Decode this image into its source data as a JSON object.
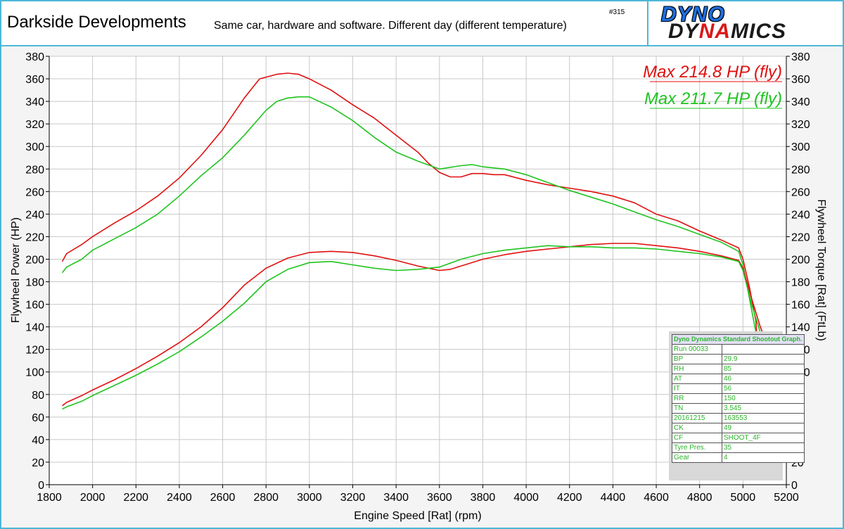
{
  "header": {
    "title": "Darkside Developments",
    "subtitle": "Same car, hardware and software. Different day (different temperature)",
    "run_number": "#315"
  },
  "logo": {
    "line1": "DYNO",
    "line2_a": "DY",
    "line2_b": "NA",
    "line2_c": "MICS"
  },
  "colors": {
    "run1": "#e01010",
    "run2": "#1fc41f",
    "grid": "#c8c8c8",
    "border": "#4db8d8"
  },
  "info_table": {
    "caption": "Dyno Dynamics Standard Shootout Graph.",
    "rows": [
      [
        "Run 00033",
        ""
      ],
      [
        "BP",
        "29.9"
      ],
      [
        "RH",
        "85"
      ],
      [
        "AT",
        "46"
      ],
      [
        "IT",
        "56"
      ],
      [
        "RR",
        "150"
      ],
      [
        "TN",
        "3.545"
      ],
      [
        "20161215",
        "163553"
      ],
      [
        "CK",
        "49"
      ],
      [
        "CF",
        "SHOOT_4F"
      ],
      [
        "Tyre Pres.",
        "35"
      ],
      [
        "Gear",
        "4"
      ]
    ]
  },
  "chart_data": {
    "type": "line",
    "xlabel": "Engine Speed [Rat] (rpm)",
    "ylabel_left": "Flywheel Power (HP)",
    "ylabel_right": "Flywheel Torque [Rat] (FtLb)",
    "xlim": [
      1800,
      5200
    ],
    "ylim": [
      0,
      380
    ],
    "x_ticks": [
      1800,
      2000,
      2200,
      2400,
      2600,
      2800,
      3000,
      3200,
      3400,
      3600,
      3800,
      4000,
      4200,
      4400,
      4600,
      4800,
      5000,
      5200
    ],
    "y_ticks": [
      0,
      20,
      40,
      60,
      80,
      100,
      120,
      140,
      160,
      180,
      200,
      220,
      240,
      260,
      280,
      300,
      320,
      340,
      360,
      380
    ],
    "grid": true,
    "annotations": [
      {
        "text": "Max 214.8 HP (fly)",
        "color": "#e01010"
      },
      {
        "text": "Max 211.7 HP (fly)",
        "color": "#1fc41f"
      }
    ],
    "series": [
      {
        "run": 1,
        "kind": "torque",
        "color": "#e01010",
        "points": [
          [
            1860,
            198
          ],
          [
            1880,
            205
          ],
          [
            1950,
            213
          ],
          [
            2000,
            220
          ],
          [
            2100,
            232
          ],
          [
            2200,
            243
          ],
          [
            2300,
            256
          ],
          [
            2400,
            272
          ],
          [
            2500,
            292
          ],
          [
            2600,
            315
          ],
          [
            2700,
            343
          ],
          [
            2770,
            360
          ],
          [
            2850,
            364
          ],
          [
            2900,
            365
          ],
          [
            2950,
            364
          ],
          [
            3000,
            360
          ],
          [
            3100,
            350
          ],
          [
            3200,
            337
          ],
          [
            3300,
            325
          ],
          [
            3400,
            310
          ],
          [
            3500,
            295
          ],
          [
            3550,
            285
          ],
          [
            3600,
            277
          ],
          [
            3650,
            273
          ],
          [
            3700,
            273
          ],
          [
            3750,
            276
          ],
          [
            3800,
            276
          ],
          [
            3850,
            275
          ],
          [
            3900,
            275
          ],
          [
            4000,
            270
          ],
          [
            4100,
            266
          ],
          [
            4200,
            263
          ],
          [
            4300,
            260
          ],
          [
            4400,
            256
          ],
          [
            4500,
            250
          ],
          [
            4600,
            240
          ],
          [
            4700,
            234
          ],
          [
            4800,
            225
          ],
          [
            4900,
            217
          ],
          [
            4980,
            210
          ],
          [
            5000,
            200
          ],
          [
            5030,
            175
          ],
          [
            5060,
            145
          ],
          [
            5070,
            110
          ]
        ]
      },
      {
        "run": 2,
        "kind": "torque",
        "color": "#1fc41f",
        "points": [
          [
            1860,
            188
          ],
          [
            1880,
            193
          ],
          [
            1950,
            200
          ],
          [
            2000,
            208
          ],
          [
            2100,
            218
          ],
          [
            2200,
            228
          ],
          [
            2300,
            240
          ],
          [
            2400,
            256
          ],
          [
            2500,
            274
          ],
          [
            2600,
            290
          ],
          [
            2700,
            310
          ],
          [
            2800,
            332
          ],
          [
            2850,
            340
          ],
          [
            2900,
            343
          ],
          [
            2950,
            344
          ],
          [
            3000,
            344
          ],
          [
            3100,
            335
          ],
          [
            3200,
            323
          ],
          [
            3300,
            308
          ],
          [
            3400,
            295
          ],
          [
            3500,
            287
          ],
          [
            3600,
            280
          ],
          [
            3700,
            283
          ],
          [
            3750,
            284
          ],
          [
            3800,
            282
          ],
          [
            3900,
            280
          ],
          [
            4000,
            275
          ],
          [
            4100,
            268
          ],
          [
            4200,
            261
          ],
          [
            4300,
            255
          ],
          [
            4400,
            249
          ],
          [
            4500,
            242
          ],
          [
            4600,
            235
          ],
          [
            4700,
            229
          ],
          [
            4800,
            222
          ],
          [
            4900,
            215
          ],
          [
            4980,
            207
          ],
          [
            5000,
            195
          ],
          [
            5030,
            165
          ],
          [
            5060,
            135
          ],
          [
            5080,
            100
          ]
        ]
      },
      {
        "run": 1,
        "kind": "power",
        "color": "#e01010",
        "points": [
          [
            1860,
            70
          ],
          [
            1880,
            73
          ],
          [
            1950,
            79
          ],
          [
            2000,
            84
          ],
          [
            2100,
            93
          ],
          [
            2200,
            103
          ],
          [
            2300,
            114
          ],
          [
            2400,
            126
          ],
          [
            2500,
            140
          ],
          [
            2600,
            157
          ],
          [
            2700,
            177
          ],
          [
            2800,
            192
          ],
          [
            2900,
            201
          ],
          [
            3000,
            206
          ],
          [
            3100,
            207
          ],
          [
            3200,
            206
          ],
          [
            3300,
            203
          ],
          [
            3400,
            199
          ],
          [
            3500,
            194
          ],
          [
            3600,
            190
          ],
          [
            3650,
            191
          ],
          [
            3700,
            194
          ],
          [
            3800,
            200
          ],
          [
            3900,
            204
          ],
          [
            4000,
            207
          ],
          [
            4100,
            209
          ],
          [
            4200,
            211
          ],
          [
            4300,
            213
          ],
          [
            4400,
            214
          ],
          [
            4500,
            214
          ],
          [
            4600,
            212
          ],
          [
            4700,
            210
          ],
          [
            4800,
            207
          ],
          [
            4900,
            203
          ],
          [
            4980,
            199
          ],
          [
            5000,
            192
          ],
          [
            5040,
            165
          ],
          [
            5080,
            140
          ],
          [
            5090,
            135
          ]
        ]
      },
      {
        "run": 2,
        "kind": "power",
        "color": "#1fc41f",
        "points": [
          [
            1860,
            67
          ],
          [
            1880,
            69
          ],
          [
            1950,
            74
          ],
          [
            2000,
            79
          ],
          [
            2100,
            88
          ],
          [
            2200,
            97
          ],
          [
            2300,
            107
          ],
          [
            2400,
            118
          ],
          [
            2500,
            131
          ],
          [
            2600,
            145
          ],
          [
            2700,
            161
          ],
          [
            2800,
            180
          ],
          [
            2900,
            191
          ],
          [
            3000,
            197
          ],
          [
            3100,
            198
          ],
          [
            3200,
            195
          ],
          [
            3300,
            192
          ],
          [
            3400,
            190
          ],
          [
            3500,
            191
          ],
          [
            3600,
            193
          ],
          [
            3700,
            200
          ],
          [
            3800,
            205
          ],
          [
            3900,
            208
          ],
          [
            4000,
            210
          ],
          [
            4100,
            212
          ],
          [
            4200,
            211
          ],
          [
            4300,
            211
          ],
          [
            4400,
            210
          ],
          [
            4500,
            210
          ],
          [
            4600,
            209
          ],
          [
            4700,
            207
          ],
          [
            4800,
            205
          ],
          [
            4900,
            202
          ],
          [
            4980,
            198
          ],
          [
            5000,
            190
          ],
          [
            5040,
            160
          ],
          [
            5080,
            135
          ],
          [
            5100,
            128
          ]
        ]
      }
    ]
  }
}
